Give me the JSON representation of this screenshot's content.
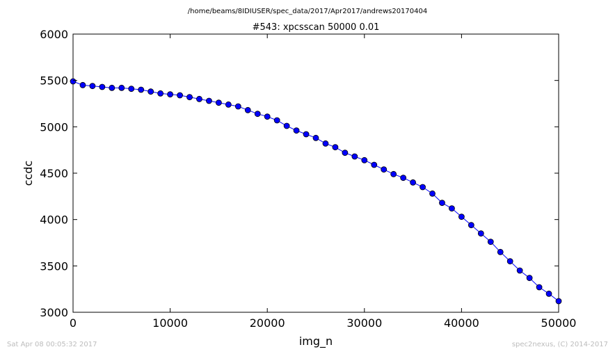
{
  "header": {
    "path": "/home/beams/8IDIUSER/spec_data/2017/Apr2017/andrews20170404"
  },
  "footer": {
    "timestamp": "Sat Apr 08 00:05:32 2017",
    "credit": "spec2nexus, (C) 2014-2017"
  },
  "colors": {
    "series": "#0000ff",
    "footer_text": "#bcbcbc"
  },
  "chart_data": {
    "type": "line",
    "title": "#543: xpcsscan 50000 0.01",
    "xlabel": "img_n",
    "ylabel": "ccdc",
    "xlim": [
      0,
      50000
    ],
    "ylim": [
      3000,
      6000
    ],
    "xticks": [
      0,
      10000,
      20000,
      30000,
      40000,
      50000
    ],
    "yticks": [
      3000,
      3500,
      4000,
      4500,
      5000,
      5500,
      6000
    ],
    "grid": false,
    "markers": "circle",
    "series": [
      {
        "x": [
          0,
          1000,
          2000,
          3000,
          4000,
          5000,
          6000,
          7000,
          8000,
          9000,
          10000,
          11000,
          12000,
          13000,
          14000,
          15000,
          16000,
          17000,
          18000,
          19000,
          20000,
          21000,
          22000,
          23000,
          24000,
          25000,
          26000,
          27000,
          28000,
          29000,
          30000,
          31000,
          32000,
          33000,
          34000,
          35000,
          36000,
          37000,
          38000,
          39000,
          40000,
          41000,
          42000,
          43000,
          44000,
          45000,
          46000,
          47000,
          48000,
          49000,
          50000
        ],
        "y": [
          5490,
          5450,
          5440,
          5430,
          5420,
          5420,
          5410,
          5400,
          5380,
          5360,
          5350,
          5340,
          5320,
          5300,
          5280,
          5260,
          5240,
          5220,
          5180,
          5140,
          5110,
          5070,
          5010,
          4960,
          4920,
          4880,
          4820,
          4780,
          4720,
          4680,
          4640,
          4590,
          4540,
          4490,
          4450,
          4400,
          4350,
          4280,
          4180,
          4120,
          4030,
          3940,
          3850,
          3760,
          3650,
          3550,
          3450,
          3370,
          3270,
          3200,
          3120
        ]
      }
    ]
  }
}
